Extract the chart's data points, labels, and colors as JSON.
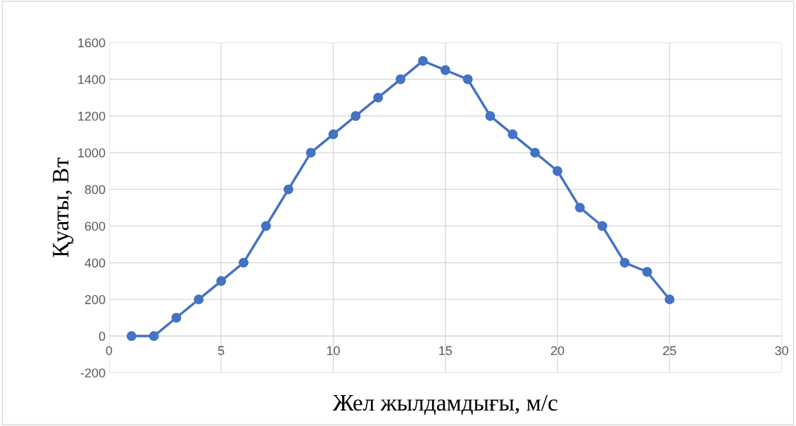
{
  "chart_data": {
    "type": "line",
    "xlabel": "Жел жылдамдығы, м/с",
    "ylabel": "Қуаты, Вт",
    "x": [
      1,
      2,
      3,
      4,
      5,
      6,
      7,
      8,
      9,
      10,
      11,
      12,
      13,
      14,
      15,
      16,
      17,
      18,
      19,
      20,
      21,
      22,
      23,
      24,
      25
    ],
    "series": [
      {
        "color": "#4472c4",
        "values": [
          0,
          0,
          100,
          200,
          300,
          400,
          600,
          800,
          1000,
          1100,
          1200,
          1300,
          1400,
          1500,
          1450,
          1400,
          1200,
          1100,
          1000,
          900,
          700,
          600,
          400,
          350,
          200
        ]
      }
    ],
    "xlim": [
      0,
      30
    ],
    "xticks": [
      0,
      5,
      10,
      15,
      20,
      25,
      30
    ],
    "ylim": [
      -200,
      1600
    ],
    "yticks": [
      -200,
      0,
      200,
      400,
      600,
      800,
      1000,
      1200,
      1400,
      1600
    ],
    "grid": true,
    "marker": "circle",
    "line_style": "solid"
  }
}
